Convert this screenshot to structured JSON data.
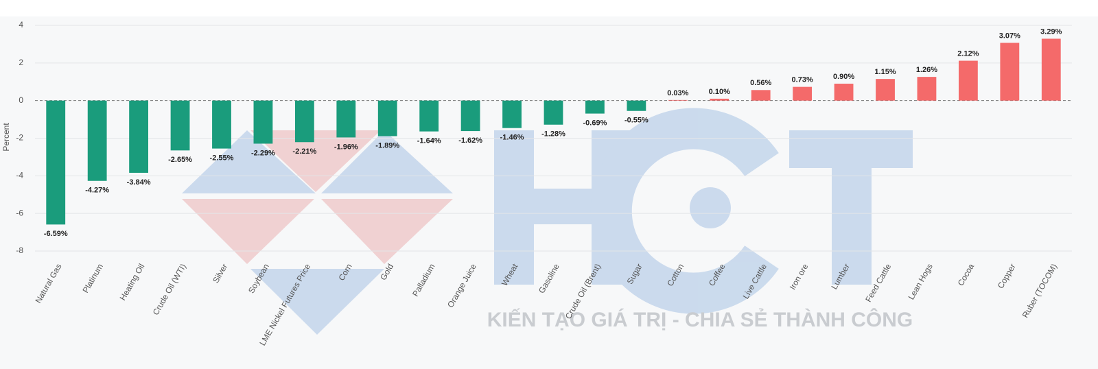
{
  "chart_data": {
    "type": "bar",
    "y_label": "Percent",
    "watermark": "KIẾN TẠO GIÁ TRỊ - CHIA SẺ THÀNH CÔNG",
    "categories": [
      "Natural Gas",
      "Platinum",
      "Heating Oil",
      "Crude Oil (WTI)",
      "Silver",
      "Soybean",
      "LME Nickel Futures Price",
      "Corn",
      "Gold",
      "Palladium",
      "Orange Juice",
      "Wheat",
      "Gasoline",
      "Crude Oil (Brent)",
      "Sugar",
      "Cotton",
      "Coffee",
      "Live Cattle",
      "Iron ore",
      "Lumber",
      "Feed Cattle",
      "Lean Hogs",
      "Cocoa",
      "Copper",
      "Ruber (TOCOM)"
    ],
    "values": [
      -6.59,
      -4.27,
      -3.84,
      -2.65,
      -2.55,
      -2.29,
      -2.21,
      -1.96,
      -1.89,
      -1.64,
      -1.62,
      -1.46,
      -1.28,
      -0.69,
      -0.55,
      0.03,
      0.1,
      0.56,
      0.73,
      0.9,
      1.15,
      1.26,
      2.12,
      3.07,
      3.29
    ],
    "value_labels": [
      "-6.59%",
      "-4.27%",
      "-3.84%",
      "-2.65%",
      "-2.55%",
      "-2.29%",
      "-2.21%",
      "-1.96%",
      "-1.89%",
      "-1.64%",
      "-1.62%",
      "-1.46%",
      "-1.28%",
      "-0.69%",
      "-0.55%",
      "0.03%",
      "0.10%",
      "0.56%",
      "0.73%",
      "0.90%",
      "1.15%",
      "1.26%",
      "2.12%",
      "3.07%",
      "3.29%"
    ],
    "positive_color": "#f46a6a",
    "negative_color": "#1a9c7c",
    "ylim": [
      -8,
      4
    ],
    "yticks": [
      -8,
      -6,
      -4,
      -2,
      0,
      2,
      4
    ],
    "grid": true
  }
}
